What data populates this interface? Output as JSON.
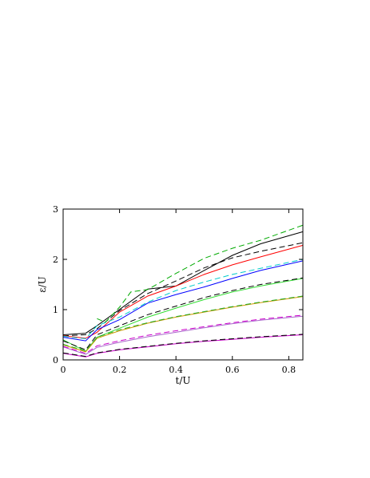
{
  "chart_data": {
    "type": "line",
    "title": "",
    "xlabel": "t/U",
    "ylabel": "ε/U",
    "xlim": [
      0,
      0.85
    ],
    "ylim": [
      0,
      3
    ],
    "xticks": [
      0,
      0.2,
      0.4,
      0.6,
      0.8
    ],
    "yticks": [
      0,
      1,
      2,
      3
    ],
    "xtick_labels": [
      "0",
      "0.2",
      "0.4",
      "0.6",
      "0.8"
    ],
    "ytick_labels": [
      "0",
      "1",
      "2",
      "3"
    ],
    "grid": false,
    "legend": "none",
    "series": [
      {
        "color": "#000000",
        "dashed": false,
        "points": [
          [
            0,
            0.5
          ],
          [
            0.08,
            0.53
          ],
          [
            0.12,
            0.68
          ],
          [
            0.3,
            1.41
          ],
          [
            0.4,
            1.47
          ],
          [
            0.5,
            1.78
          ],
          [
            0.6,
            2.08
          ],
          [
            0.7,
            2.31
          ],
          [
            0.85,
            2.55
          ]
        ]
      },
      {
        "color": "#000000",
        "dashed": true,
        "points": [
          [
            0,
            0.48
          ],
          [
            0.08,
            0.5
          ],
          [
            0.12,
            0.62
          ],
          [
            0.2,
            0.98
          ],
          [
            0.3,
            1.32
          ],
          [
            0.4,
            1.57
          ],
          [
            0.5,
            1.83
          ],
          [
            0.6,
            2.03
          ],
          [
            0.7,
            2.16
          ],
          [
            0.85,
            2.33
          ]
        ]
      },
      {
        "color": "#ff0000",
        "dashed": false,
        "points": [
          [
            0,
            0.48
          ],
          [
            0.08,
            0.43
          ],
          [
            0.12,
            0.55
          ],
          [
            0.2,
            0.95
          ],
          [
            0.3,
            1.27
          ],
          [
            0.4,
            1.47
          ],
          [
            0.5,
            1.7
          ],
          [
            0.6,
            1.89
          ],
          [
            0.7,
            2.05
          ],
          [
            0.85,
            2.28
          ]
        ]
      },
      {
        "color": "#0000ff",
        "dashed": false,
        "points": [
          [
            0,
            0.45
          ],
          [
            0.08,
            0.38
          ],
          [
            0.12,
            0.6
          ],
          [
            0.2,
            0.8
          ],
          [
            0.3,
            1.13
          ],
          [
            0.4,
            1.3
          ],
          [
            0.5,
            1.45
          ],
          [
            0.6,
            1.62
          ],
          [
            0.7,
            1.78
          ],
          [
            0.85,
            1.97
          ]
        ]
      },
      {
        "color": "#00cccc",
        "dashed": true,
        "points": [
          [
            0,
            0.47
          ],
          [
            0.08,
            0.42
          ],
          [
            0.12,
            0.68
          ],
          [
            0.2,
            0.85
          ],
          [
            0.3,
            1.15
          ],
          [
            0.4,
            1.38
          ],
          [
            0.5,
            1.55
          ],
          [
            0.6,
            1.7
          ],
          [
            0.7,
            1.82
          ],
          [
            0.85,
            2.0
          ]
        ]
      },
      {
        "color": "#00aa00",
        "dashed": true,
        "points": [
          [
            0.12,
            0.82
          ],
          [
            0.15,
            0.75
          ],
          [
            0.2,
            1.05
          ],
          [
            0.24,
            1.35
          ],
          [
            0.3,
            1.4
          ],
          [
            0.4,
            1.72
          ],
          [
            0.5,
            2.02
          ],
          [
            0.6,
            2.22
          ],
          [
            0.7,
            2.38
          ],
          [
            0.85,
            2.68
          ]
        ]
      },
      {
        "color": "#33dd33",
        "dashed": false,
        "points": [
          [
            0,
            0.4
          ],
          [
            0.08,
            0.17
          ],
          [
            0.12,
            0.45
          ],
          [
            0.2,
            0.63
          ],
          [
            0.3,
            0.85
          ],
          [
            0.4,
            1.03
          ],
          [
            0.5,
            1.2
          ],
          [
            0.6,
            1.35
          ],
          [
            0.7,
            1.47
          ],
          [
            0.85,
            1.62
          ]
        ]
      },
      {
        "color": "#000000",
        "dashed": true,
        "points": [
          [
            0,
            0.38
          ],
          [
            0.08,
            0.2
          ],
          [
            0.12,
            0.5
          ],
          [
            0.2,
            0.68
          ],
          [
            0.3,
            0.9
          ],
          [
            0.4,
            1.07
          ],
          [
            0.5,
            1.24
          ],
          [
            0.6,
            1.38
          ],
          [
            0.7,
            1.5
          ],
          [
            0.85,
            1.63
          ]
        ]
      },
      {
        "color": "#cc9900",
        "dashed": false,
        "points": [
          [
            0,
            0.3
          ],
          [
            0.08,
            0.16
          ],
          [
            0.12,
            0.43
          ],
          [
            0.2,
            0.58
          ],
          [
            0.3,
            0.73
          ],
          [
            0.4,
            0.85
          ],
          [
            0.5,
            0.95
          ],
          [
            0.6,
            1.05
          ],
          [
            0.7,
            1.14
          ],
          [
            0.85,
            1.26
          ]
        ]
      },
      {
        "color": "#22aa22",
        "dashed": true,
        "points": [
          [
            0,
            0.31
          ],
          [
            0.08,
            0.18
          ],
          [
            0.12,
            0.45
          ],
          [
            0.2,
            0.6
          ],
          [
            0.3,
            0.74
          ],
          [
            0.4,
            0.86
          ],
          [
            0.5,
            0.96
          ],
          [
            0.6,
            1.06
          ],
          [
            0.7,
            1.15
          ],
          [
            0.85,
            1.27
          ]
        ]
      },
      {
        "color": "#aa66cc",
        "dashed": false,
        "points": [
          [
            0,
            0.26
          ],
          [
            0.08,
            0.11
          ],
          [
            0.12,
            0.25
          ],
          [
            0.2,
            0.35
          ],
          [
            0.3,
            0.46
          ],
          [
            0.4,
            0.55
          ],
          [
            0.5,
            0.64
          ],
          [
            0.6,
            0.72
          ],
          [
            0.7,
            0.79
          ],
          [
            0.85,
            0.87
          ]
        ]
      },
      {
        "color": "#cc00cc",
        "dashed": true,
        "points": [
          [
            0,
            0.27
          ],
          [
            0.08,
            0.13
          ],
          [
            0.12,
            0.28
          ],
          [
            0.2,
            0.38
          ],
          [
            0.3,
            0.49
          ],
          [
            0.4,
            0.58
          ],
          [
            0.5,
            0.66
          ],
          [
            0.6,
            0.74
          ],
          [
            0.7,
            0.81
          ],
          [
            0.85,
            0.89
          ]
        ]
      },
      {
        "color": "#cc00cc",
        "dashed": false,
        "points": [
          [
            0,
            0.13
          ],
          [
            0.08,
            0.06
          ],
          [
            0.12,
            0.13
          ],
          [
            0.2,
            0.2
          ],
          [
            0.3,
            0.26
          ],
          [
            0.4,
            0.32
          ],
          [
            0.5,
            0.37
          ],
          [
            0.6,
            0.41
          ],
          [
            0.7,
            0.45
          ],
          [
            0.85,
            0.5
          ]
        ]
      },
      {
        "color": "#000000",
        "dashed": true,
        "points": [
          [
            0,
            0.14
          ],
          [
            0.08,
            0.07
          ],
          [
            0.12,
            0.14
          ],
          [
            0.2,
            0.21
          ],
          [
            0.3,
            0.27
          ],
          [
            0.4,
            0.33
          ],
          [
            0.5,
            0.38
          ],
          [
            0.6,
            0.42
          ],
          [
            0.7,
            0.46
          ],
          [
            0.85,
            0.51
          ]
        ]
      }
    ]
  }
}
